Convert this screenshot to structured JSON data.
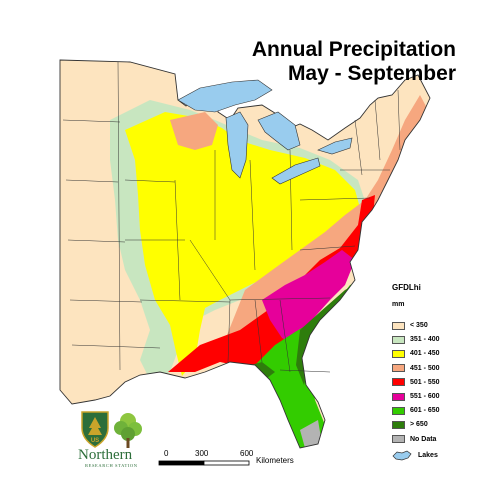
{
  "title_line1": "Annual Precipitation",
  "title_line2": "May - September",
  "legend": {
    "model": "GFDLhi",
    "unit": "mm",
    "classes": [
      {
        "label": "< 350",
        "color": "#fde4bf"
      },
      {
        "label": "351 - 400",
        "color": "#c8e6c0"
      },
      {
        "label": "401 - 450",
        "color": "#ffff00"
      },
      {
        "label": "451 - 500",
        "color": "#f6a77f"
      },
      {
        "label": "501 - 550",
        "color": "#ff0000"
      },
      {
        "label": "551 - 600",
        "color": "#e6009a"
      },
      {
        "label": "601 - 650",
        "color": "#33cc00"
      },
      {
        "label": "> 650",
        "color": "#2e7d0c"
      },
      {
        "label": "No Data",
        "color": "#b3b3b3"
      }
    ],
    "lakes_label": "Lakes",
    "lakes_color": "#99ccee"
  },
  "scale": {
    "ticks": [
      "0",
      "300",
      "600"
    ],
    "unit": "Kilometers"
  },
  "logos": {
    "org_name": "Northern",
    "org_subtitle": "RESEARCH STATION",
    "shield_text": "US"
  }
}
